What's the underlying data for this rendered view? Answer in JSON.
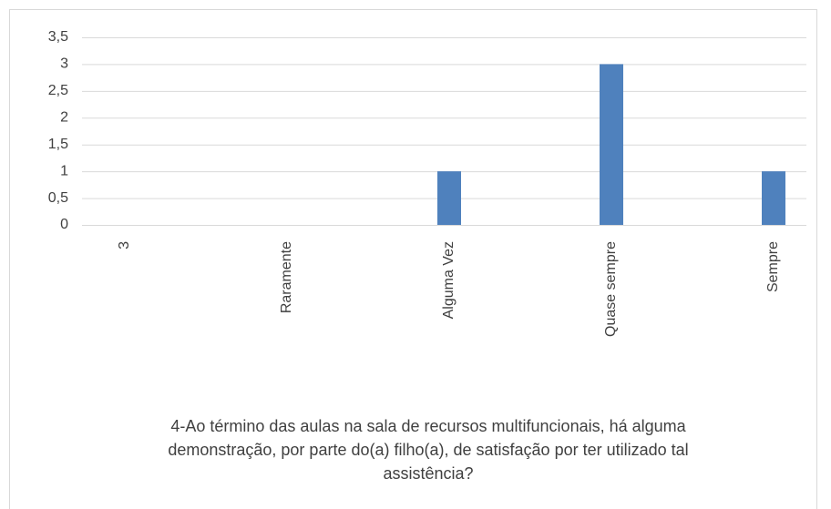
{
  "chart_data": {
    "type": "bar",
    "title": "4-Ao término das aulas na sala de recursos multifuncionais, há alguma demonstração, por parte do(a) filho(a), de satisfação por ter utilizado tal assistência?",
    "categories": [
      "3",
      "Raramente",
      "Alguma Vez",
      "Quase sempre",
      "Sempre"
    ],
    "values": [
      0,
      0,
      1,
      3,
      1
    ],
    "color": "#4f81bd",
    "ylim": [
      0,
      3.5
    ],
    "yticks": [
      0,
      {
        "value": 0.5,
        "label": "0,5"
      },
      1,
      {
        "value": 1.5,
        "label": "1,5"
      },
      2,
      {
        "value": 2.5,
        "label": "2,5"
      },
      3,
      {
        "value": 3.5,
        "label": "3,5"
      }
    ],
    "grid": true
  }
}
